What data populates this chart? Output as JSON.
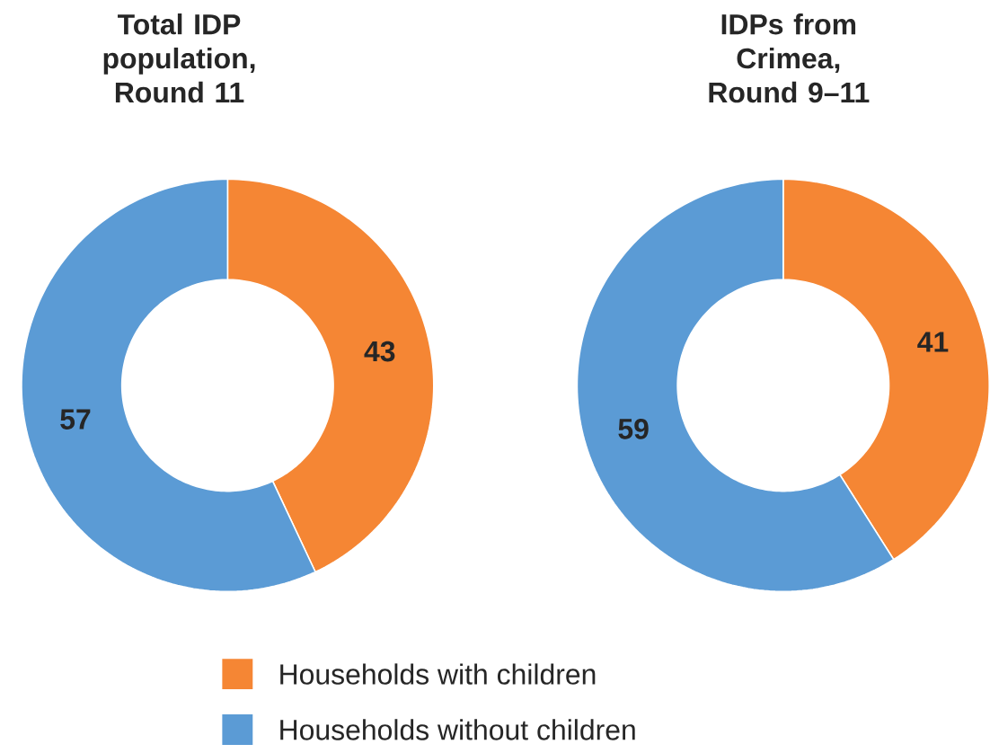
{
  "chart_data": [
    {
      "type": "donut",
      "title": "Total IDP population, Round 11",
      "categories": [
        "Households with children",
        "Households without children"
      ],
      "values": [
        43,
        57
      ],
      "colors": [
        "#f58634",
        "#5b9bd5"
      ],
      "data_labels": true,
      "legend": "bottom"
    },
    {
      "type": "donut",
      "title": "IDPs from Crimea, Round 9–11",
      "categories": [
        null,
        null
      ],
      "values": [
        41,
        59
      ],
      "colors": [
        "#f58634",
        "#5b9bd5"
      ],
      "data_labels": true
    }
  ]
}
